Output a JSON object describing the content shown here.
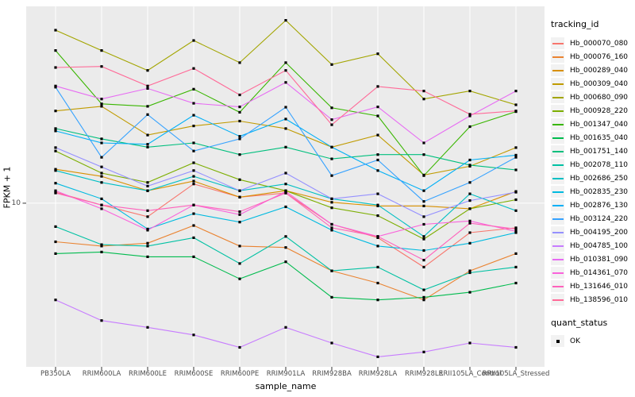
{
  "figure": {
    "panel_background": "#EBEBEB",
    "grid_color": "#FFFFFF",
    "tick_mark_color": "#333333",
    "axis_text_color": "#4D4D4D",
    "point_color": "#000000"
  },
  "chart_data": {
    "type": "line",
    "title": "",
    "xlabel": "sample_name",
    "ylabel": "FPKM + 1",
    "x_categories": [
      "PB350LA",
      "RRIM600LA",
      "RRIM600LE",
      "RRIM600SE",
      "RRIM600PE",
      "RRIM901LA",
      "RRIM928BA",
      "RRIM928LA",
      "RRIM928LE",
      "RRII105LA_Control",
      "RRII105LA_Stressed"
    ],
    "y_axis": {
      "scale": "log10",
      "range": [
        1.61,
        90
      ],
      "ticks": [
        {
          "value": 10,
          "label": "10"
        }
      ]
    },
    "grid": "vertical major per category, horizontal major at y=10",
    "legend": {
      "title": "tracking_id",
      "position": "right"
    },
    "point_legend": {
      "title": "quant_status",
      "items": [
        {
          "label": "OK",
          "shape": "square",
          "color": "#000000"
        }
      ]
    },
    "point_shape": "square",
    "series": [
      {
        "name": "Hb_000070_080",
        "color": "#F8766D",
        "values": [
          11.3,
          9.8,
          8.6,
          12.4,
          10.7,
          11.2,
          7.9,
          6.8,
          4.9,
          7.2,
          7.6
        ]
      },
      {
        "name": "Hb_000076_160",
        "color": "#EA8331",
        "values": [
          6.5,
          6.2,
          6.4,
          7.8,
          6.2,
          6.1,
          4.7,
          4.1,
          3.4,
          4.7,
          5.7
        ]
      },
      {
        "name": "Hb_000289_040",
        "color": "#D89000",
        "values": [
          14.6,
          13.5,
          11.5,
          12.8,
          10.7,
          11.5,
          10.1,
          9.7,
          9.7,
          9.4,
          11.4
        ]
      },
      {
        "name": "Hb_000309_040",
        "color": "#C09B00",
        "values": [
          28,
          29.5,
          21.4,
          23.7,
          25,
          23,
          18.7,
          21.4,
          13.7,
          15.1,
          18.6
        ]
      },
      {
        "name": "Hb_000680_090",
        "color": "#A3A500",
        "values": [
          69,
          55,
          44,
          61.5,
          48,
          77,
          47,
          53,
          32,
          35,
          30
        ]
      },
      {
        "name": "Hb_000928_220",
        "color": "#7CAE00",
        "values": [
          17.9,
          14,
          12.6,
          15.7,
          13,
          11.5,
          9.5,
          8.7,
          6.7,
          9.4,
          10.4
        ]
      },
      {
        "name": "Hb_001347_040",
        "color": "#39B600",
        "values": [
          55,
          30.3,
          29.5,
          35.7,
          27.6,
          48,
          29,
          26.5,
          13.6,
          23.5,
          27.8
        ]
      },
      {
        "name": "Hb_001635_040",
        "color": "#00BB4E",
        "values": [
          5.7,
          5.8,
          5.5,
          5.5,
          4.3,
          5.2,
          3.5,
          3.4,
          3.5,
          3.7,
          4.1
        ]
      },
      {
        "name": "Hb_001751_140",
        "color": "#00BF7D",
        "values": [
          23,
          20.5,
          18.7,
          19.6,
          17.2,
          18.7,
          16.4,
          17.2,
          17.2,
          15.3,
          14.5
        ]
      },
      {
        "name": "Hb_002078_110",
        "color": "#00C1A3",
        "values": [
          7.7,
          6.3,
          6.2,
          6.8,
          5.1,
          6.9,
          4.7,
          4.9,
          3.8,
          4.6,
          4.9
        ]
      },
      {
        "name": "Hb_002686_250",
        "color": "#00BFC4",
        "values": [
          14.4,
          12.6,
          11.5,
          13.5,
          11.5,
          12.4,
          10.5,
          9.8,
          6.9,
          11.1,
          9.2
        ]
      },
      {
        "name": "Hb_002835_230",
        "color": "#00BAE0",
        "values": [
          12.5,
          10.5,
          7.5,
          8.9,
          8.1,
          9.6,
          7.4,
          6.2,
          5.9,
          6.4,
          7.2
        ]
      },
      {
        "name": "Hb_002876_130",
        "color": "#00B0F6",
        "values": [
          22.4,
          19.6,
          19.3,
          26.7,
          21.1,
          25.6,
          18.7,
          14.4,
          11.5,
          16.2,
          17.1
        ]
      },
      {
        "name": "Hb_003124_220",
        "color": "#35A2FF",
        "values": [
          36.5,
          16.7,
          26.9,
          17.9,
          20.5,
          29.2,
          13.6,
          16.2,
          10.2,
          12.6,
          16.7
        ]
      },
      {
        "name": "Hb_004195_200",
        "color": "#9590FF",
        "values": [
          18.6,
          15,
          12.1,
          14.4,
          11.5,
          14,
          10.5,
          11.1,
          8.6,
          10.3,
          11.3
        ]
      },
      {
        "name": "Hb_004785_100",
        "color": "#C77CFF",
        "values": [
          3.4,
          2.7,
          2.5,
          2.3,
          2.0,
          2.5,
          2.1,
          1.8,
          1.9,
          2.1,
          2.0
        ]
      },
      {
        "name": "Hb_010381_090",
        "color": "#E76BF3",
        "values": [
          37,
          32,
          36,
          30.5,
          29.3,
          38.5,
          25.4,
          29.3,
          19.6,
          26.5,
          35
        ]
      },
      {
        "name": "Hb_014361_070",
        "color": "#FA62DB",
        "values": [
          11.5,
          9.4,
          7.4,
          9.8,
          8.8,
          11.4,
          7.9,
          6.9,
          7.9,
          8.2,
          7.3
        ]
      },
      {
        "name": "Hb_131646_010",
        "color": "#FF62BC",
        "values": [
          11.2,
          9.8,
          9.2,
          9.8,
          9.1,
          11.2,
          7.6,
          6.9,
          5.3,
          8.0,
          7.5
        ]
      },
      {
        "name": "Hb_138596_010",
        "color": "#FF6A98",
        "values": [
          45.5,
          46,
          37,
          45,
          33.5,
          44,
          24,
          36.8,
          35,
          27,
          28
        ]
      }
    ]
  }
}
